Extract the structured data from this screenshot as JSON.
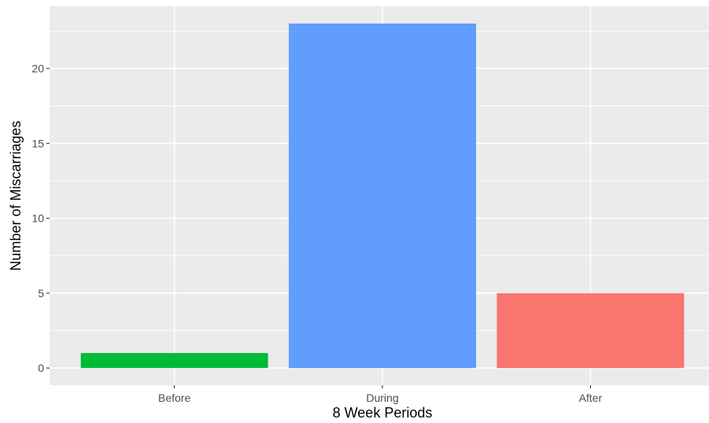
{
  "chart_data": {
    "type": "bar",
    "title": "",
    "xlabel": "8 Week Periods",
    "ylabel": "Number of Miscarriages",
    "categories": [
      "Before",
      "During",
      "After"
    ],
    "values": [
      1,
      23,
      5
    ],
    "bar_colors": [
      "#00ba38",
      "#619cff",
      "#f8766d"
    ],
    "ylim": [
      -1.15,
      24.15
    ],
    "yticks": [
      0,
      5,
      10,
      15,
      20
    ],
    "ytick_labels": [
      "0",
      "5",
      "10",
      "15",
      "20"
    ],
    "grid": true,
    "legend": "none",
    "panel_background": "#ebebeb",
    "gridline_color": "#ffffff"
  }
}
